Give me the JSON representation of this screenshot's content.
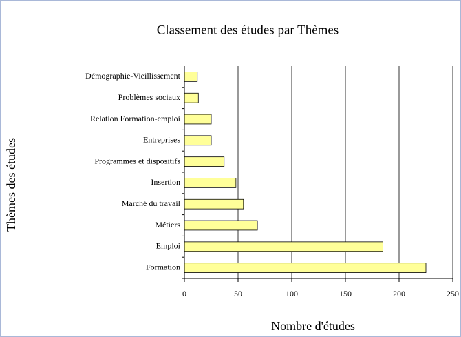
{
  "chart_data": {
    "type": "barh",
    "title": "Classement des études par Thèmes",
    "x_label": "Nombre d'études",
    "y_label": "Thèmes des études",
    "categories": [
      "Formation",
      "Emploi",
      "Métiers",
      "Marché du travail",
      "Insertion",
      "Programmes et dispositifs",
      "Entreprises",
      "Relation Formation-emploi",
      "Problèmes sociaux",
      "Démographie-Vieillissement"
    ],
    "values": [
      225,
      185,
      68,
      55,
      48,
      37,
      25,
      25,
      13,
      12
    ],
    "color": "#ffff99",
    "xlim": [
      0,
      250
    ],
    "xticks": [
      0,
      50,
      100,
      150,
      200,
      250
    ],
    "grid": true
  }
}
